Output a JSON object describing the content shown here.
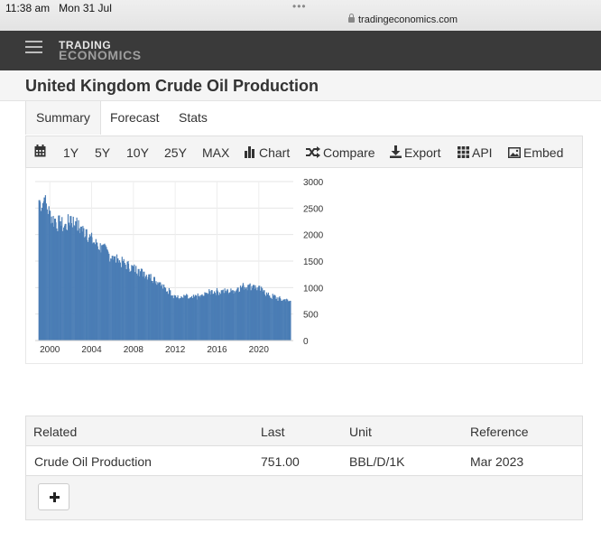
{
  "status": {
    "time": "11:38 am",
    "date": "Mon 31 Jul",
    "dots": "•••",
    "url": "tradingeconomics.com"
  },
  "header": {
    "logo_line1": "TRADING",
    "logo_line2": "ECONOMICS"
  },
  "page": {
    "title": "United Kingdom Crude Oil Production"
  },
  "tabs": [
    {
      "label": "Summary"
    },
    {
      "label": "Forecast"
    },
    {
      "label": "Stats"
    }
  ],
  "toolbar": {
    "ranges": [
      "1Y",
      "5Y",
      "10Y",
      "25Y",
      "MAX"
    ],
    "chart": "Chart",
    "compare": "Compare",
    "export": "Export",
    "api": "API",
    "embed": "Embed"
  },
  "chart_data": {
    "type": "bar",
    "x_ticks": [
      "2000",
      "2004",
      "2008",
      "2012",
      "2016",
      "2020"
    ],
    "y_ticks": [
      "3000",
      "2500",
      "2000",
      "1500",
      "1000",
      "500",
      "0"
    ],
    "ylim": [
      0,
      3000
    ],
    "xlim": [
      1998.6,
      2023.3
    ],
    "grid": true,
    "bar_color": "#4a7db5",
    "series": [
      {
        "x": [
          1999.0,
          1999.5,
          2000.0,
          2000.5,
          2001.0,
          2001.5,
          2002.0,
          2002.5,
          2003.0,
          2003.5,
          2004.0,
          2004.5,
          2005.0,
          2005.5,
          2006.0,
          2006.5,
          2007.0,
          2007.5,
          2008.0,
          2008.5,
          2009.0,
          2009.5,
          2010.0,
          2010.5,
          2011.0,
          2011.5,
          2012.0,
          2012.5,
          2013.0,
          2013.5,
          2014.0,
          2014.5,
          2015.0,
          2015.5,
          2016.0,
          2016.5,
          2017.0,
          2017.5,
          2018.0,
          2018.5,
          2019.0,
          2019.5,
          2020.0,
          2020.5,
          2021.0,
          2021.5,
          2022.0,
          2022.5,
          2023.0
        ],
        "values": [
          2650,
          2700,
          2450,
          2300,
          2250,
          2200,
          2350,
          2250,
          2150,
          2100,
          1950,
          1850,
          1800,
          1700,
          1600,
          1550,
          1500,
          1450,
          1400,
          1350,
          1300,
          1250,
          1200,
          1100,
          1000,
          950,
          850,
          800,
          850,
          800,
          850,
          850,
          900,
          950,
          950,
          950,
          950,
          950,
          1000,
          1050,
          1050,
          1050,
          1000,
          950,
          850,
          850,
          800,
          780,
          751
        ]
      }
    ]
  },
  "related": {
    "headers": [
      "Related",
      "Last",
      "Unit",
      "Reference"
    ],
    "rows": [
      [
        "Crude Oil Production",
        "751.00",
        "BBL/D/1K",
        "Mar 2023"
      ]
    ]
  }
}
